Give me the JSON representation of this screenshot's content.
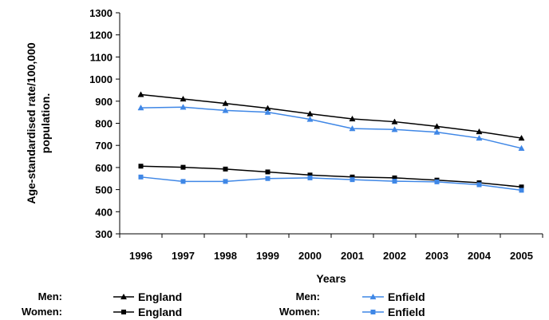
{
  "chart_data": {
    "type": "line",
    "xlabel": "Years",
    "ylabel": "Age-standardised rate/100,000\npopulation.",
    "x": [
      "1996",
      "1997",
      "1998",
      "1999",
      "2000",
      "2001",
      "2002",
      "2003",
      "2004",
      "2005"
    ],
    "ylim": [
      300,
      1300
    ],
    "yticks": [
      300,
      400,
      500,
      600,
      700,
      800,
      900,
      1000,
      1100,
      1200,
      1300
    ],
    "grid": false,
    "legend_placement": "bottom",
    "series": [
      {
        "name": "England",
        "group": "Men:",
        "marker": "triangle",
        "color": "#000000",
        "values": [
          930,
          910,
          890,
          868,
          843,
          820,
          807,
          786,
          762,
          733
        ]
      },
      {
        "name": "Enfield",
        "group": "Men:",
        "marker": "triangle",
        "color": "#3F87E6",
        "values": [
          870,
          873,
          858,
          850,
          818,
          776,
          772,
          760,
          733,
          687
        ]
      },
      {
        "name": "England",
        "group": "Women:",
        "marker": "square",
        "color": "#000000",
        "values": [
          606,
          601,
          593,
          580,
          566,
          557,
          553,
          543,
          531,
          512
        ]
      },
      {
        "name": "Enfield",
        "group": "Women:",
        "marker": "square",
        "color": "#3F87E6",
        "values": [
          557,
          537,
          537,
          550,
          553,
          545,
          538,
          535,
          522,
          497
        ]
      }
    ]
  }
}
